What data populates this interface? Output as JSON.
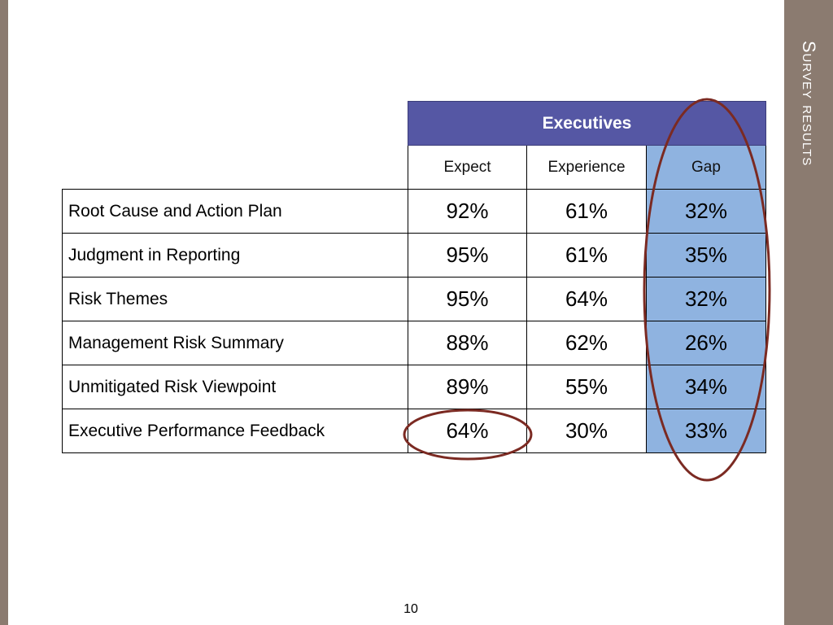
{
  "slide": {
    "section_title": "Survey results",
    "page_number": "10",
    "accent_color": "#8b7b70",
    "header_color": "#5557a4",
    "gap_column_color": "#8fb3e0",
    "highlight_ellipse_color": "#7b2a22"
  },
  "table": {
    "group_header": "Executives",
    "columns": [
      "Expect",
      "Experience",
      "Gap"
    ],
    "rows": [
      {
        "label": "Root Cause and Action Plan",
        "expect": "92%",
        "experience": "61%",
        "gap": "32%"
      },
      {
        "label": "Judgment in Reporting",
        "expect": "95%",
        "experience": "61%",
        "gap": "35%"
      },
      {
        "label": "Risk Themes",
        "expect": "95%",
        "experience": "64%",
        "gap": "32%"
      },
      {
        "label": "Management Risk Summary",
        "expect": "88%",
        "experience": "62%",
        "gap": "26%"
      },
      {
        "label": "Unmitigated Risk Viewpoint",
        "expect": "89%",
        "experience": "55%",
        "gap": "34%"
      },
      {
        "label": "Executive Performance Feedback",
        "expect": "64%",
        "experience": "30%",
        "gap": "33%"
      }
    ]
  }
}
